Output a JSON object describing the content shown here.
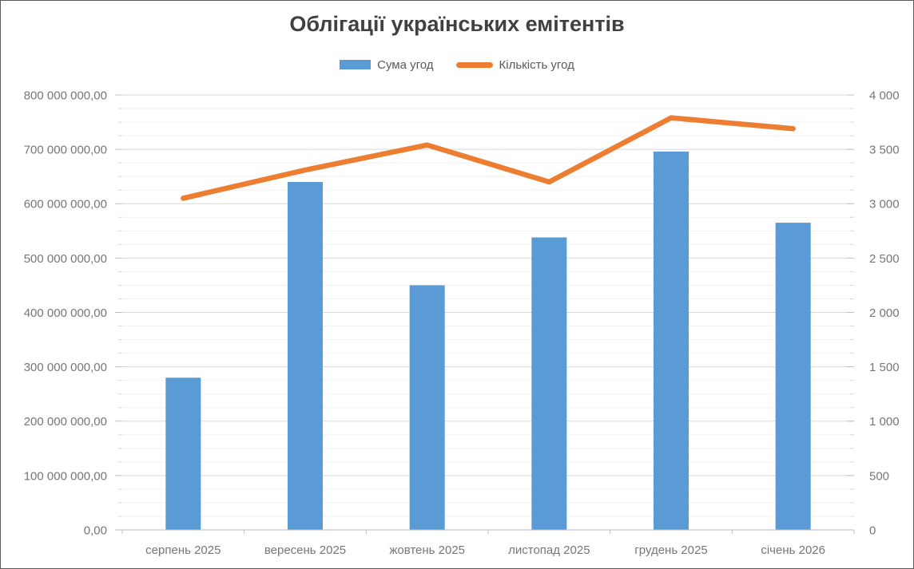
{
  "chart_data": {
    "type": "combo",
    "title": "Облігації українських емітентів",
    "categories": [
      "серпень 2025",
      "вересень 2025",
      "жовтень 2025",
      "листопад 2025",
      "грудень 2025",
      "січень 2026"
    ],
    "series": [
      {
        "name": "Сума угод",
        "type": "bar",
        "axis": "left",
        "color": "#5B9BD5",
        "values": [
          280000000,
          640000000,
          450000000,
          538000000,
          696000000,
          565000000
        ]
      },
      {
        "name": "Кількість угод",
        "type": "line",
        "axis": "right",
        "color": "#ED7D31",
        "values": [
          3050,
          3310,
          3540,
          3200,
          3790,
          3690
        ]
      }
    ],
    "left_axis": {
      "min": 0,
      "max": 800000000,
      "major": 100000000,
      "minor": 25000000,
      "tick_labels": [
        "800 000 000,00",
        "700 000 000,00",
        "600 000 000,00",
        "500 000 000,00",
        "400 000 000,00",
        "300 000 000,00",
        "200 000 000,00",
        "100 000 000,00",
        "0,00"
      ]
    },
    "right_axis": {
      "min": 0,
      "max": 4000,
      "major": 500,
      "minor": 125,
      "tick_labels": [
        "4 000",
        "3 500",
        "3 000",
        "2 500",
        "2 000",
        "1 500",
        "1 000",
        "500",
        "0"
      ]
    },
    "grid": {
      "major": true,
      "minor": true
    },
    "legend_position": "top",
    "colors": {
      "title_text": "#404040",
      "legend_text": "#595959",
      "axis_text": "#767676",
      "major_grid": "#D9D9D9",
      "minor_grid": "#F2F2F2",
      "axis_line": "#BFBFBF",
      "background": "#FFFFFF"
    }
  }
}
